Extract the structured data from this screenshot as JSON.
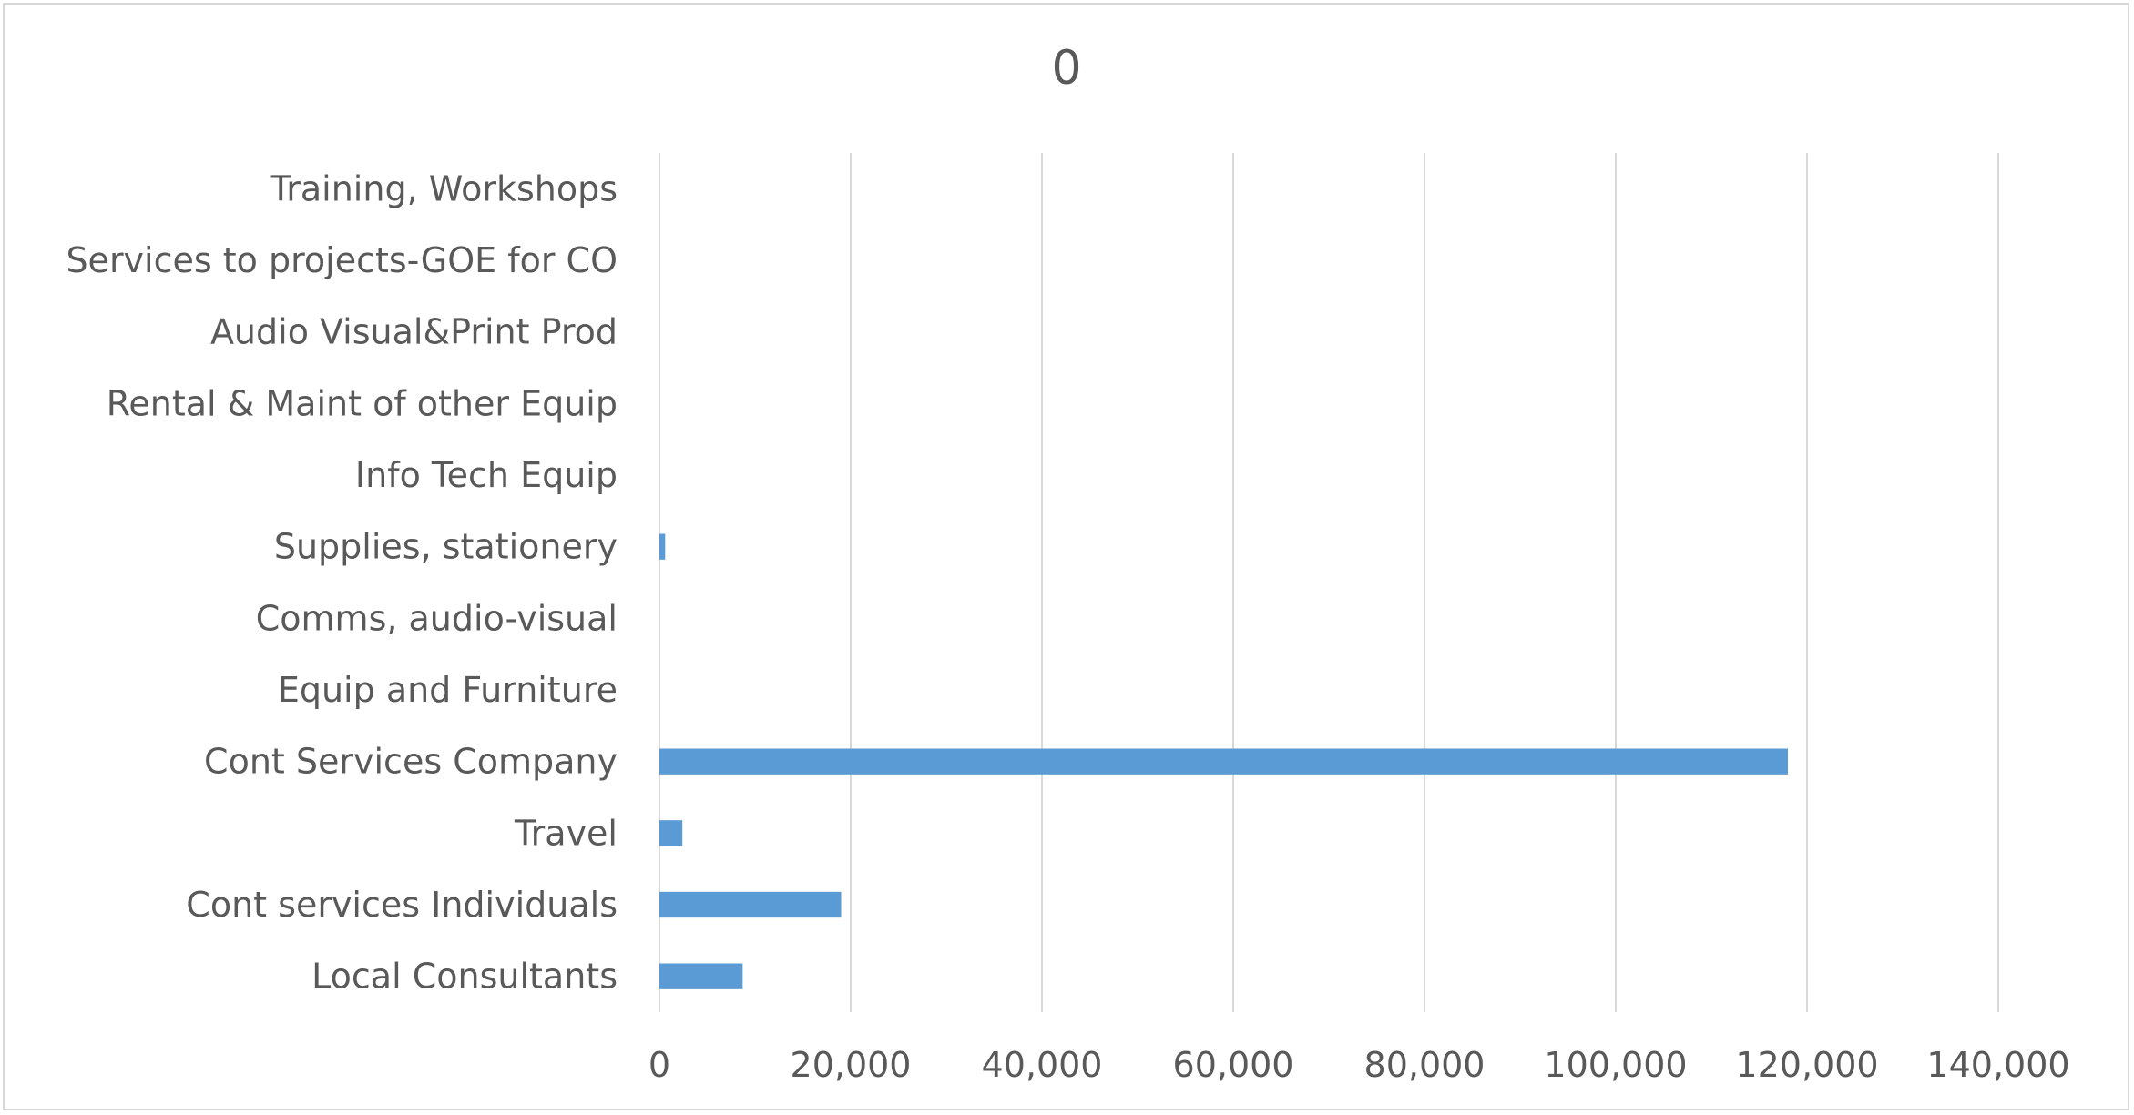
{
  "chart_data": {
    "type": "bar",
    "orientation": "horizontal",
    "title": "0",
    "categories": [
      "Local Consultants",
      "Cont services Individuals",
      "Travel ",
      "Cont Services Company",
      "Equip and Furniture",
      "Comms, audio-visual",
      "Supplies, stationery",
      "Info Tech Equip",
      "Rental & Maint of other Equip",
      "Audio Visual&Print Prod",
      "Services to projects-GOE for CO",
      "Training, Workshops"
    ],
    "values": [
      8700,
      19000,
      2400,
      118000,
      0,
      0,
      600,
      0,
      0,
      0,
      0,
      0
    ],
    "xlim": [
      0,
      140000
    ],
    "xticks": [
      0,
      20000,
      40000,
      60000,
      80000,
      100000,
      120000,
      140000
    ],
    "xtick_labels": [
      "0",
      "20,000",
      "40,000",
      "60,000",
      "80,000",
      "100,000",
      "120,000",
      "140,000"
    ],
    "xlabel": "",
    "ylabel": "",
    "grid": "vertical",
    "legend": "none",
    "colors": {
      "bar": "#5b9bd5",
      "text": "#595959",
      "grid": "#d9d9d9",
      "border": "#d9d9d9"
    }
  }
}
